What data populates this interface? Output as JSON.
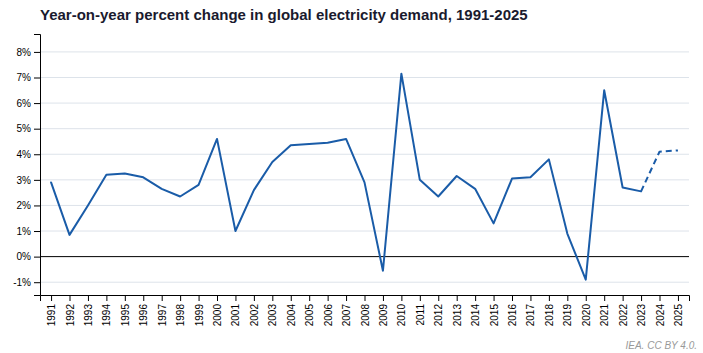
{
  "chart_data": {
    "type": "line",
    "title": "Year-on-year percent change in global electricity demand, 1991-2025",
    "annotations": [
      "IEA. CC BY 4.0."
    ],
    "x": [
      1991,
      1992,
      1993,
      1994,
      1995,
      1996,
      1997,
      1998,
      1999,
      2000,
      2001,
      2002,
      2003,
      2004,
      2005,
      2006,
      2007,
      2008,
      2009,
      2010,
      2011,
      2012,
      2013,
      2014,
      2015,
      2016,
      2017,
      2018,
      2019,
      2020,
      2021,
      2022,
      2023,
      2024,
      2025
    ],
    "series": [
      {
        "color": "#1a5ca8",
        "line_style": "solid",
        "values": [
          2.9,
          0.85,
          2.0,
          3.2,
          3.25,
          3.1,
          2.65,
          2.35,
          2.8,
          4.6,
          1.0,
          2.6,
          3.7,
          4.35,
          4.4,
          4.45,
          4.6,
          2.9,
          -0.55,
          7.15,
          3.0,
          2.35,
          3.15,
          2.65,
          1.3,
          3.05,
          3.1,
          3.8,
          0.9,
          -0.9,
          6.5,
          2.7,
          2.55,
          null,
          null
        ]
      },
      {
        "color": "#1a5ca8",
        "line_style": "dashed",
        "values": [
          null,
          null,
          null,
          null,
          null,
          null,
          null,
          null,
          null,
          null,
          null,
          null,
          null,
          null,
          null,
          null,
          null,
          null,
          null,
          null,
          null,
          null,
          null,
          null,
          null,
          null,
          null,
          null,
          null,
          null,
          null,
          null,
          2.55,
          4.1,
          4.15
        ]
      }
    ],
    "xlim": [
      1990.4,
      2025.6
    ],
    "xticks": [
      1991,
      1992,
      1993,
      1994,
      1995,
      1996,
      1997,
      1998,
      1999,
      2000,
      2001,
      2002,
      2003,
      2004,
      2005,
      2006,
      2007,
      2008,
      2009,
      2010,
      2011,
      2012,
      2013,
      2014,
      2015,
      2016,
      2017,
      2018,
      2019,
      2020,
      2021,
      2022,
      2023,
      2024,
      2025
    ],
    "ylim": [
      -1.5,
      8.7
    ],
    "yticks": [
      {
        "value": -1,
        "label": "-1%"
      },
      {
        "value": 0,
        "label": "0%"
      },
      {
        "value": 1,
        "label": "1%"
      },
      {
        "value": 2,
        "label": "2%"
      },
      {
        "value": 3,
        "label": "3%"
      },
      {
        "value": 4,
        "label": "4%"
      },
      {
        "value": 5,
        "label": "5%"
      },
      {
        "value": 6,
        "label": "6%"
      },
      {
        "value": 7,
        "label": "7%"
      },
      {
        "value": 8,
        "label": "8%"
      }
    ],
    "grid": true
  }
}
